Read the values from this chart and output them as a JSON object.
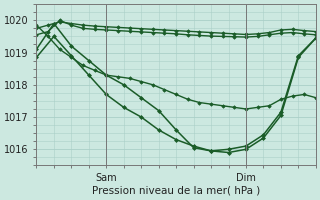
{
  "background_color": "#cce8e0",
  "grid_color": "#aacfc8",
  "line_color": "#1a5c28",
  "xlabel": "Pression niveau de la mer( hPa )",
  "ylim": [
    1015.5,
    1020.5
  ],
  "xlim": [
    0,
    48
  ],
  "xticks_pos": [
    12,
    36
  ],
  "xticklabels": [
    "Sam",
    "Dim"
  ],
  "yticks": [
    1016,
    1017,
    1018,
    1019,
    1020
  ],
  "series": [
    {
      "x": [
        0,
        2,
        4,
        6,
        8,
        10,
        12,
        14,
        16,
        18,
        20,
        22,
        24,
        26,
        28,
        30,
        32,
        34,
        36,
        38,
        40,
        42,
        44,
        46,
        48
      ],
      "y": [
        1019.75,
        1019.85,
        1019.95,
        1019.9,
        1019.85,
        1019.82,
        1019.8,
        1019.78,
        1019.76,
        1019.74,
        1019.72,
        1019.7,
        1019.68,
        1019.66,
        1019.64,
        1019.62,
        1019.6,
        1019.58,
        1019.56,
        1019.58,
        1019.62,
        1019.7,
        1019.72,
        1019.68,
        1019.65
      ],
      "marker": "D",
      "markersize": 1.8,
      "linewidth": 1.0
    },
    {
      "x": [
        0,
        2,
        4,
        6,
        8,
        10,
        12,
        14,
        16,
        18,
        20,
        22,
        24,
        26,
        28,
        30,
        32,
        34,
        36,
        38,
        40,
        42,
        44,
        46,
        48
      ],
      "y": [
        1019.55,
        1019.65,
        1020.0,
        1019.85,
        1019.75,
        1019.72,
        1019.7,
        1019.68,
        1019.66,
        1019.64,
        1019.62,
        1019.6,
        1019.58,
        1019.55,
        1019.53,
        1019.51,
        1019.5,
        1019.49,
        1019.48,
        1019.5,
        1019.55,
        1019.6,
        1019.62,
        1019.58,
        1019.55
      ],
      "marker": "D",
      "markersize": 1.8,
      "linewidth": 1.0
    },
    {
      "x": [
        0,
        2,
        4,
        6,
        8,
        10,
        12,
        14,
        16,
        18,
        20,
        22,
        24,
        26,
        28,
        30,
        32,
        34,
        36,
        38,
        40,
        42,
        44,
        46,
        48
      ],
      "y": [
        1019.85,
        1019.5,
        1019.1,
        1018.85,
        1018.6,
        1018.45,
        1018.3,
        1018.25,
        1018.2,
        1018.1,
        1018.0,
        1017.85,
        1017.7,
        1017.55,
        1017.45,
        1017.4,
        1017.35,
        1017.3,
        1017.25,
        1017.3,
        1017.35,
        1017.55,
        1017.65,
        1017.7,
        1017.6
      ],
      "marker": "D",
      "markersize": 1.8,
      "linewidth": 1.0
    },
    {
      "x": [
        0,
        3,
        6,
        9,
        12,
        15,
        18,
        21,
        24,
        27,
        30,
        33,
        36,
        39,
        42,
        45,
        48
      ],
      "y": [
        1019.1,
        1019.9,
        1019.2,
        1018.75,
        1018.3,
        1018.0,
        1017.6,
        1017.2,
        1016.6,
        1016.05,
        1015.95,
        1016.0,
        1016.1,
        1016.45,
        1017.15,
        1018.9,
        1019.45
      ],
      "marker": "D",
      "markersize": 2,
      "linewidth": 1.1
    },
    {
      "x": [
        0,
        3,
        6,
        9,
        12,
        15,
        18,
        21,
        24,
        27,
        30,
        33,
        36,
        39,
        42,
        45,
        48
      ],
      "y": [
        1018.85,
        1019.5,
        1018.9,
        1018.3,
        1017.7,
        1017.3,
        1017.0,
        1016.6,
        1016.3,
        1016.1,
        1015.95,
        1015.9,
        1016.0,
        1016.35,
        1017.05,
        1018.85,
        1019.45
      ],
      "marker": "D",
      "markersize": 2,
      "linewidth": 1.1
    }
  ]
}
